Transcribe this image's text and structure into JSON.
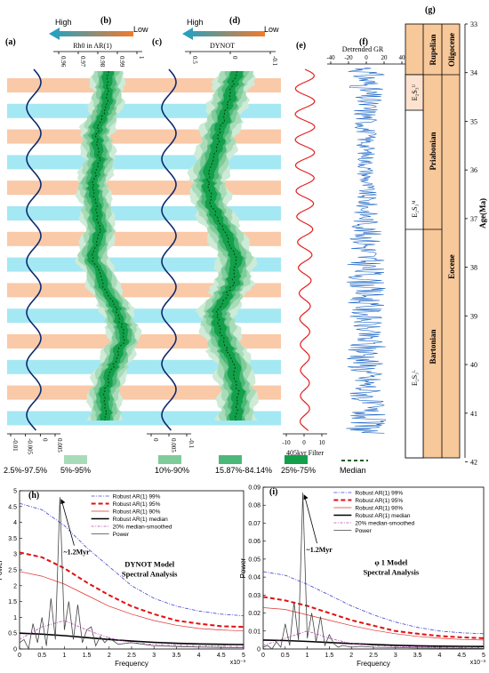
{
  "panel_letters": [
    "(a)",
    "(b)",
    "(c)",
    "(d)",
    "(e)",
    "(f)",
    "(g)",
    "(h)",
    "(i)"
  ],
  "arrows": {
    "b": {
      "high": "High",
      "low": "Low",
      "label": "Rh0 in AR(1)"
    },
    "d": {
      "high": "High",
      "low": "Low",
      "label": "DYNOT"
    }
  },
  "axis_b_ticks": [
    "0.96",
    "0.97",
    "0.98",
    "0.99",
    "1"
  ],
  "axis_d_ticks": [
    "0.5",
    "0",
    "-0.1"
  ],
  "axis_a_ticks": [
    "-0.01",
    "-0.005",
    "0",
    "0.005"
  ],
  "axis_c_ticks": [
    "0",
    "0.005",
    "-0.1"
  ],
  "gr_label": "Detrended GR",
  "gr_ticks": [
    "-40",
    "-20",
    "0",
    "20",
    "40"
  ],
  "filter_label": "405kyr Filter",
  "filter_ticks": [
    "-10",
    "0",
    "10"
  ],
  "age_axis": {
    "label": "Age(Ma)",
    "ticks": [
      "33",
      "34",
      "35",
      "36",
      "37",
      "38",
      "39",
      "40",
      "41",
      "42"
    ]
  },
  "chrono": {
    "epochs": [
      "Oligocene",
      "Eocene"
    ],
    "stages": [
      "Rupelian",
      "Priabonian",
      "Bartonian"
    ],
    "units": [
      "E₂S₃ᵁ",
      "E₂S₃ᴹ",
      "E₂S₃ᴸ"
    ]
  },
  "legend": [
    {
      "label": "2.5%-97.5%",
      "color": "#cdebd6"
    },
    {
      "label": "5%-95%",
      "color": "#a8dcb8"
    },
    {
      "label": "10%-90%",
      "color": "#7fcc9a"
    },
    {
      "label": "15.87%-84.14%",
      "color": "#4cb878"
    },
    {
      "label": "25%-75%",
      "color": "#12a04a"
    },
    {
      "label": "Median",
      "color": "#0b5e22"
    }
  ],
  "colors": {
    "peach": "#f9c9a8",
    "cyan": "#a4e8f3",
    "orbit": "#0d2a6e",
    "filter": "#e32020",
    "gr": "#1a64c4",
    "chrono": "#f7c89a"
  },
  "chart_data": [
    {
      "type": "line",
      "panel": "(h)",
      "title_lines": [
        "DYNOT Model",
        "Spectral Analysis"
      ],
      "xlabel": "Frequency",
      "x_multiplier": "x10⁻³",
      "ylabel": "Power",
      "xlim": [
        0,
        5
      ],
      "ylim": [
        0,
        5
      ],
      "xticks": [
        "0",
        "0.5",
        "1",
        "1.5",
        "2",
        "2.5",
        "3",
        "3.5",
        "4",
        "4.5",
        "5"
      ],
      "yticks": [
        "0",
        "0.5",
        "1",
        "1.5",
        "2",
        "2.5",
        "3",
        "3.5",
        "4",
        "4.5",
        "5"
      ],
      "annotation": "~1.2Myr",
      "legend_entries": [
        "Robust AR(1) 99%",
        "Robust AR(1) 95%",
        "Robust AR(1) 90%",
        "Robust AR(1) median",
        "20% median-smoothed",
        "Power"
      ],
      "series": [
        {
          "name": "Robust AR(1) 99%",
          "x": [
            0,
            0.5,
            1,
            1.5,
            2,
            2.5,
            3,
            3.5,
            4,
            4.5,
            5
          ],
          "values": [
            4.6,
            4.4,
            3.9,
            3.2,
            2.6,
            2.0,
            1.6,
            1.35,
            1.2,
            1.1,
            1.05
          ]
        },
        {
          "name": "Robust AR(1) 95%",
          "x": [
            0,
            0.5,
            1,
            1.5,
            2,
            2.5,
            3,
            3.5,
            4,
            4.5,
            5
          ],
          "values": [
            3.05,
            2.9,
            2.55,
            2.1,
            1.7,
            1.35,
            1.1,
            0.9,
            0.8,
            0.72,
            0.7
          ]
        },
        {
          "name": "Robust AR(1) 90%",
          "x": [
            0,
            0.5,
            1,
            1.5,
            2,
            2.5,
            3,
            3.5,
            4,
            4.5,
            5
          ],
          "values": [
            2.45,
            2.3,
            2.05,
            1.7,
            1.35,
            1.1,
            0.9,
            0.75,
            0.65,
            0.6,
            0.57
          ]
        },
        {
          "name": "Robust AR(1) median",
          "x": [
            0,
            0.5,
            1,
            1.5,
            2,
            2.5,
            3,
            3.5,
            4,
            4.5,
            5
          ],
          "values": [
            0.5,
            0.47,
            0.42,
            0.36,
            0.3,
            0.25,
            0.21,
            0.18,
            0.16,
            0.15,
            0.14
          ]
        },
        {
          "name": "20% median-smoothed",
          "x": [
            0,
            0.5,
            1,
            1.5,
            2,
            2.5,
            3,
            3.5,
            4,
            4.5,
            5
          ],
          "values": [
            0.3,
            0.7,
            0.9,
            0.6,
            0.35,
            0.2,
            0.15,
            0.12,
            0.1,
            0.09,
            0.08
          ]
        },
        {
          "name": "Power",
          "x": [
            0,
            0.1,
            0.2,
            0.3,
            0.4,
            0.5,
            0.6,
            0.7,
            0.8,
            0.9,
            1.0,
            1.1,
            1.2,
            1.3,
            1.4,
            1.5,
            1.6,
            1.7,
            1.8,
            1.9,
            2.0,
            2.2,
            2.5,
            3.0,
            3.5,
            4.0,
            4.5,
            5.0
          ],
          "values": [
            0.2,
            0.3,
            0.0,
            0.8,
            0.2,
            1.0,
            0.1,
            1.6,
            0.3,
            4.8,
            0.6,
            1.5,
            0.3,
            1.4,
            0.2,
            0.6,
            0.7,
            0.1,
            0.4,
            0.2,
            0.35,
            0.15,
            0.2,
            0.1,
            0.08,
            0.06,
            0.05,
            0.04
          ]
        }
      ]
    },
    {
      "type": "line",
      "panel": "(i)",
      "title_lines": [
        "φ 1 Model",
        "Spectral Analysis"
      ],
      "xlabel": "Frequency",
      "x_multiplier": "x10⁻³",
      "ylabel": "Power",
      "xlim": [
        0,
        5
      ],
      "ylim": [
        0,
        0.09
      ],
      "xticks": [
        "0",
        "0.5",
        "1",
        "1.5",
        "2",
        "2.5",
        "3",
        "3.5",
        "4",
        "4.5",
        "5"
      ],
      "yticks": [
        "0",
        "0.01",
        "0.02",
        "0.03",
        "0.04",
        "0.05",
        "0.06",
        "0.07",
        "0.08",
        "0.09"
      ],
      "annotation": "~1.2Myr",
      "legend_entries": [
        "Robust AR(1) 99%",
        "Robust AR(1) 95%",
        "Robust AR(1) 90%",
        "Robust AR(1) median",
        "20% median-smoothed",
        "Power"
      ],
      "series": [
        {
          "name": "Robust AR(1) 99%",
          "x": [
            0,
            0.5,
            1,
            1.5,
            2,
            2.5,
            3,
            3.5,
            4,
            4.5,
            5
          ],
          "values": [
            0.043,
            0.041,
            0.036,
            0.03,
            0.024,
            0.019,
            0.015,
            0.012,
            0.01,
            0.009,
            0.0085
          ]
        },
        {
          "name": "Robust AR(1) 95%",
          "x": [
            0,
            0.5,
            1,
            1.5,
            2,
            2.5,
            3,
            3.5,
            4,
            4.5,
            5
          ],
          "values": [
            0.029,
            0.027,
            0.024,
            0.02,
            0.016,
            0.013,
            0.01,
            0.0085,
            0.0072,
            0.0065,
            0.006
          ]
        },
        {
          "name": "Robust AR(1) 90%",
          "x": [
            0,
            0.5,
            1,
            1.5,
            2,
            2.5,
            3,
            3.5,
            4,
            4.5,
            5
          ],
          "values": [
            0.023,
            0.022,
            0.019,
            0.016,
            0.013,
            0.0105,
            0.0085,
            0.007,
            0.006,
            0.0053,
            0.005
          ]
        },
        {
          "name": "Robust AR(1) median",
          "x": [
            0,
            0.5,
            1,
            1.5,
            2,
            2.5,
            3,
            3.5,
            4,
            4.5,
            5
          ],
          "values": [
            0.005,
            0.0047,
            0.0042,
            0.0036,
            0.003,
            0.0025,
            0.0021,
            0.0018,
            0.0016,
            0.0015,
            0.0014
          ]
        },
        {
          "name": "20% median-smoothed",
          "x": [
            0,
            0.5,
            1,
            1.5,
            2,
            2.5,
            3,
            3.5,
            4,
            4.5,
            5
          ],
          "values": [
            0.002,
            0.006,
            0.01,
            0.006,
            0.003,
            0.002,
            0.0015,
            0.0012,
            0.001,
            0.0009,
            0.0008
          ]
        },
        {
          "name": "Power",
          "x": [
            0,
            0.1,
            0.2,
            0.3,
            0.4,
            0.5,
            0.6,
            0.7,
            0.8,
            0.9,
            1.0,
            1.1,
            1.2,
            1.3,
            1.4,
            1.5,
            1.6,
            1.7,
            1.8,
            2.0,
            2.2,
            2.5,
            3.0,
            3.5,
            4.0,
            4.5,
            5.0
          ],
          "values": [
            0.001,
            0.002,
            0.0,
            0.004,
            0.001,
            0.014,
            0.002,
            0.026,
            0.005,
            0.087,
            0.006,
            0.02,
            0.004,
            0.018,
            0.002,
            0.008,
            0.003,
            0.001,
            0.002,
            0.001,
            0.0015,
            0.001,
            0.0008,
            0.0006,
            0.0005,
            0.0004,
            0.0003
          ]
        }
      ]
    }
  ]
}
